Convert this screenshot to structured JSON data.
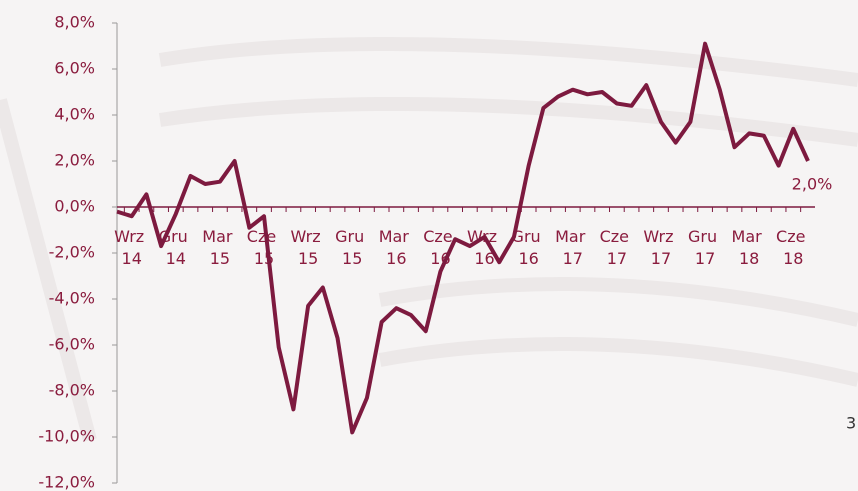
{
  "chart_data": {
    "type": "line",
    "categories": [
      null,
      "Wrz 14",
      null,
      null,
      "Gru 14",
      null,
      null,
      "Mar 15",
      null,
      null,
      "Cze 15",
      null,
      null,
      "Wrz 15",
      null,
      null,
      "Gru 15",
      null,
      null,
      "Mar 16",
      null,
      null,
      "Cze 16",
      null,
      null,
      "Wrz 16",
      null,
      null,
      "Gru 16",
      null,
      null,
      "Mar 17",
      null,
      null,
      "Cze 17",
      null,
      null,
      "Wrz 17",
      null,
      null,
      "Gru 17",
      null,
      null,
      "Mar 18",
      null,
      null,
      "Cze 18",
      null
    ],
    "series": [
      {
        "color": "#7d1a3f",
        "values": [
          -0.2,
          -0.4,
          0.55,
          -1.7,
          -0.3,
          1.35,
          1.0,
          1.1,
          2.0,
          -0.9,
          -0.4,
          -6.1,
          -8.8,
          -4.3,
          -3.5,
          -5.7,
          -9.8,
          -8.3,
          -5.0,
          -4.4,
          -4.7,
          -5.4,
          -2.8,
          -1.4,
          -1.7,
          -1.3,
          -2.4,
          -1.3,
          1.8,
          4.3,
          4.8,
          5.1,
          4.9,
          5.0,
          4.5,
          4.4,
          5.3,
          3.7,
          2.8,
          3.7,
          7.1,
          5.1,
          2.6,
          3.2,
          3.1,
          1.8,
          3.4,
          2.0
        ],
        "value_labels": [
          null,
          null,
          null,
          null,
          null,
          null,
          null,
          null,
          null,
          null,
          null,
          null,
          null,
          null,
          null,
          null,
          null,
          null,
          null,
          null,
          null,
          null,
          null,
          null,
          null,
          null,
          null,
          null,
          null,
          null,
          null,
          null,
          null,
          null,
          null,
          null,
          null,
          null,
          null,
          null,
          null,
          null,
          null,
          null,
          null,
          null,
          null,
          "2,0%"
        ]
      }
    ],
    "ylim": [
      -12,
      8
    ],
    "yticks": [
      {
        "value": -12,
        "label": "-12,0%"
      },
      {
        "value": -10,
        "label": "-10,0%"
      },
      {
        "value": -8,
        "label": "-8,0%"
      },
      {
        "value": -6,
        "label": "-6,0%"
      },
      {
        "value": -4,
        "label": "-4,0%"
      },
      {
        "value": -2,
        "label": "-2,0%"
      },
      {
        "value": 0,
        "label": "0,0%"
      },
      {
        "value": 2,
        "label": "2,0%"
      },
      {
        "value": 4,
        "label": "4,0%"
      },
      {
        "value": 6,
        "label": "6,0%"
      },
      {
        "value": 8,
        "label": "8,0%"
      }
    ]
  },
  "page_number": "3"
}
